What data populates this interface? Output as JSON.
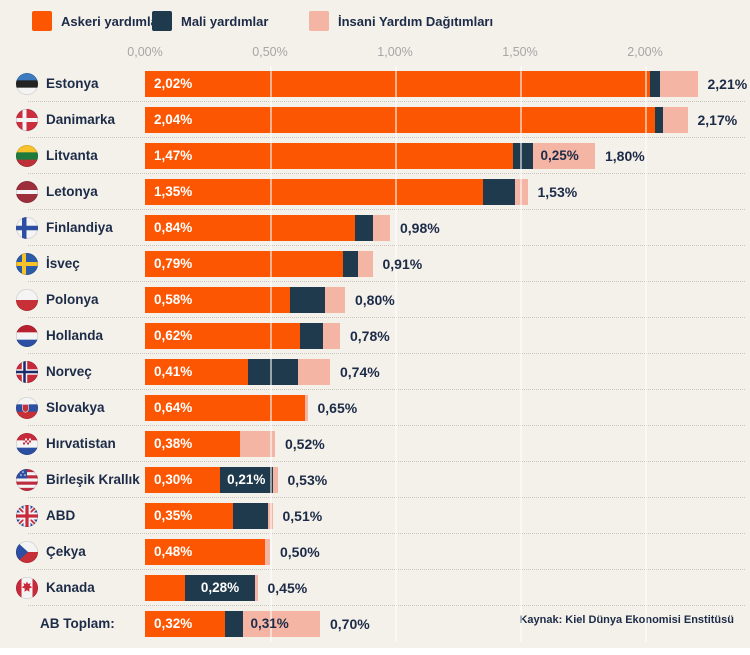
{
  "colors": {
    "military": "#FC5602",
    "financial": "#1E3A4C",
    "humanitarian": "#F4B5A4",
    "background": "#F4F0EA",
    "text_dark": "#1C2B47",
    "axis_text": "#A6A6A6",
    "label_on_humanitarian": "#1C2B47"
  },
  "legend": {
    "items": [
      {
        "label": "Askeri yardımlar",
        "key": "military"
      },
      {
        "label": "Mali yardımlar",
        "key": "financial"
      },
      {
        "label": "İnsani Yardım Dağıtımları",
        "key": "humanitarian"
      }
    ]
  },
  "source": "Kaynak: Kiel Dünya Ekonomisi Enstitüsü",
  "chart_data": {
    "type": "bar",
    "orientation": "horizontal",
    "stacked": true,
    "legend_position": "top",
    "xlim": [
      0,
      2.42
    ],
    "x_ticks": [
      "0,00%",
      "0,50%",
      "1,00%",
      "1,50%",
      "2,00%"
    ],
    "x_tick_values": [
      0,
      0.5,
      1.0,
      1.5,
      2.0
    ],
    "categories": [
      "Estonya",
      "Danimarka",
      "Litvanta",
      "Letonya",
      "Finlandiya",
      "İsveç",
      "Polonya",
      "Hollanda",
      "Norveç",
      "Slovakya",
      "Hırvatistan",
      "Birleşik Krallık",
      "ABD",
      "Çekya",
      "Kanada",
      "AB Toplam:"
    ],
    "series": [
      {
        "name": "Askeri yardımlar",
        "values": [
          2.02,
          2.04,
          1.47,
          1.35,
          0.84,
          0.79,
          0.58,
          0.62,
          0.41,
          0.64,
          0.38,
          0.3,
          0.35,
          0.48,
          0.16,
          0.32
        ]
      },
      {
        "name": "Mali yardımlar",
        "values": [
          0.04,
          0.03,
          0.08,
          0.13,
          0.07,
          0.06,
          0.14,
          0.09,
          0.2,
          0.0,
          0.0,
          0.21,
          0.14,
          0.0,
          0.28,
          0.07
        ]
      },
      {
        "name": "İnsani Yardım Dağıtımları",
        "values": [
          0.15,
          0.1,
          0.25,
          0.05,
          0.07,
          0.06,
          0.08,
          0.07,
          0.13,
          0.01,
          0.14,
          0.02,
          0.02,
          0.02,
          0.01,
          0.31
        ]
      }
    ],
    "totals": [
      2.21,
      2.17,
      1.8,
      1.53,
      0.98,
      0.91,
      0.8,
      0.78,
      0.74,
      0.65,
      0.52,
      0.53,
      0.51,
      0.5,
      0.45,
      0.7
    ],
    "rows": [
      {
        "name": "Estonya",
        "flag": "estonya",
        "military": 2.02,
        "financial": 0.04,
        "humanitarian": 0.15,
        "total": 2.21,
        "military_label": "2,02%",
        "financial_label": null,
        "humanitarian_label": null,
        "total_label": "2,21%"
      },
      {
        "name": "Danimarka",
        "flag": "danimarka",
        "military": 2.04,
        "financial": 0.03,
        "humanitarian": 0.1,
        "total": 2.17,
        "military_label": "2,04%",
        "financial_label": null,
        "humanitarian_label": null,
        "total_label": "2,17%"
      },
      {
        "name": "Litvanta",
        "flag": "litvanya",
        "military": 1.47,
        "financial": 0.08,
        "humanitarian": 0.25,
        "total": 1.8,
        "military_label": "1,47%",
        "financial_label": null,
        "humanitarian_label": "0,25%",
        "total_label": "1,80%"
      },
      {
        "name": "Letonya",
        "flag": "letonya",
        "military": 1.35,
        "financial": 0.13,
        "humanitarian": 0.05,
        "total": 1.53,
        "military_label": "1,35%",
        "financial_label": null,
        "humanitarian_label": null,
        "total_label": "1,53%"
      },
      {
        "name": "Finlandiya",
        "flag": "finlandiya",
        "military": 0.84,
        "financial": 0.07,
        "humanitarian": 0.07,
        "total": 0.98,
        "military_label": "0,84%",
        "financial_label": null,
        "humanitarian_label": null,
        "total_label": "0,98%"
      },
      {
        "name": "İsveç",
        "flag": "isvec",
        "military": 0.79,
        "financial": 0.06,
        "humanitarian": 0.06,
        "total": 0.91,
        "military_label": "0,79%",
        "financial_label": null,
        "humanitarian_label": null,
        "total_label": "0,91%"
      },
      {
        "name": "Polonya",
        "flag": "polonya",
        "military": 0.58,
        "financial": 0.14,
        "humanitarian": 0.08,
        "total": 0.8,
        "military_label": "0,58%",
        "financial_label": null,
        "humanitarian_label": null,
        "total_label": "0,80%"
      },
      {
        "name": "Hollanda",
        "flag": "hollanda",
        "military": 0.62,
        "financial": 0.09,
        "humanitarian": 0.07,
        "total": 0.78,
        "military_label": "0,62%",
        "financial_label": null,
        "humanitarian_label": null,
        "total_label": "0,78%"
      },
      {
        "name": "Norveç",
        "flag": "norvec",
        "military": 0.41,
        "financial": 0.2,
        "humanitarian": 0.13,
        "total": 0.74,
        "military_label": "0,41%",
        "financial_label": null,
        "humanitarian_label": null,
        "total_label": "0,74%"
      },
      {
        "name": "Slovakya",
        "flag": "slovakya",
        "military": 0.64,
        "financial": 0.0,
        "humanitarian": 0.01,
        "total": 0.65,
        "military_label": "0,64%",
        "financial_label": null,
        "humanitarian_label": null,
        "total_label": "0,65%"
      },
      {
        "name": "Hırvatistan",
        "flag": "hirvatistan",
        "military": 0.38,
        "financial": 0.0,
        "humanitarian": 0.14,
        "total": 0.52,
        "military_label": "0,38%",
        "financial_label": null,
        "humanitarian_label": null,
        "total_label": "0,52%"
      },
      {
        "name": "Birleşik Krallık",
        "flag": "us",
        "military": 0.3,
        "financial": 0.21,
        "humanitarian": 0.02,
        "total": 0.53,
        "military_label": "0,30%",
        "financial_label": "0,21%",
        "humanitarian_label": null,
        "total_label": "0,53%"
      },
      {
        "name": "ABD",
        "flag": "uk",
        "military": 0.35,
        "financial": 0.14,
        "humanitarian": 0.02,
        "total": 0.51,
        "military_label": "0,35%",
        "financial_label": null,
        "humanitarian_label": null,
        "total_label": "0,51%"
      },
      {
        "name": "Çekya",
        "flag": "cekya",
        "military": 0.48,
        "financial": 0.0,
        "humanitarian": 0.02,
        "total": 0.5,
        "military_label": "0,48%",
        "financial_label": null,
        "humanitarian_label": null,
        "total_label": "0,50%"
      },
      {
        "name": "Kanada",
        "flag": "kanada",
        "military": 0.16,
        "financial": 0.28,
        "humanitarian": 0.01,
        "total": 0.45,
        "military_label": null,
        "financial_label": "0,28%",
        "humanitarian_label": null,
        "total_label": "0,45%"
      },
      {
        "name": "AB Toplam:",
        "flag": null,
        "military": 0.32,
        "financial": 0.07,
        "humanitarian": 0.31,
        "total": 0.7,
        "military_label": "0,32%",
        "financial_label": null,
        "humanitarian_label": "0,31%",
        "total_label": "0,70%"
      }
    ]
  }
}
